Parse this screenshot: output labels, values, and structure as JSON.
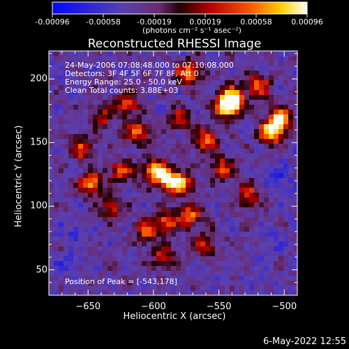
{
  "colorbar": {
    "ticks": [
      "-0.00096",
      "-0.00058",
      "-0.00019",
      "0.00019",
      "0.00058",
      "0.00096"
    ],
    "units_label": "(photons cm⁻² s⁻¹ asec⁻²)"
  },
  "chart_data": {
    "type": "heatmap",
    "title": "Reconstructed RHESSI Image",
    "xlabel": "Heliocentric X (arcsec)",
    "ylabel": "Heliocentric Y (arcsec)",
    "xlim": [
      -680,
      -490
    ],
    "ylim": [
      30,
      222
    ],
    "xticks": [
      -650,
      -600,
      -550,
      -500
    ],
    "yticks": [
      50,
      100,
      150,
      200
    ],
    "xtick_labels": [
      "-650",
      "-600",
      "-550",
      "-500"
    ],
    "ytick_labels": [
      "50",
      "100",
      "150",
      "200"
    ],
    "value_range": [
      -0.00096,
      0.00096
    ],
    "colormap": "blue-purple-red-yellow-white",
    "hotspots": [
      {
        "x": -599,
        "y": 128,
        "value": 0.00085
      },
      {
        "x": -543,
        "y": 178,
        "value": 0.00096
      },
      {
        "x": -588,
        "y": 120,
        "value": 0.0007
      },
      {
        "x": -648,
        "y": 118,
        "value": 0.0007
      },
      {
        "x": -510,
        "y": 158,
        "value": 0.00085
      },
      {
        "x": -503,
        "y": 168,
        "value": 0.0008
      },
      {
        "x": -540,
        "y": 185,
        "value": 0.0008
      },
      {
        "x": -573,
        "y": 205,
        "value": 0.0006
      },
      {
        "x": -560,
        "y": 152,
        "value": 0.0005
      },
      {
        "x": -578,
        "y": 118,
        "value": 0.0005
      },
      {
        "x": -548,
        "y": 130,
        "value": 0.0004
      },
      {
        "x": -528,
        "y": 108,
        "value": 0.0004
      },
      {
        "x": -620,
        "y": 180,
        "value": 0.0004
      },
      {
        "x": -612,
        "y": 158,
        "value": 0.0005
      },
      {
        "x": -655,
        "y": 145,
        "value": 0.0004
      },
      {
        "x": -625,
        "y": 128,
        "value": 0.0004
      },
      {
        "x": -572,
        "y": 92,
        "value": 0.0005
      },
      {
        "x": -590,
        "y": 88,
        "value": 0.0004
      },
      {
        "x": -632,
        "y": 98,
        "value": 0.0003
      },
      {
        "x": -605,
        "y": 80,
        "value": 0.0004
      },
      {
        "x": -592,
        "y": 60,
        "value": 0.0003
      },
      {
        "x": -560,
        "y": 70,
        "value": 0.0003
      },
      {
        "x": -640,
        "y": 170,
        "value": 0.0003
      },
      {
        "x": -520,
        "y": 195,
        "value": 0.0005
      },
      {
        "x": -580,
        "y": 168,
        "value": 0.0003
      },
      {
        "x": -660,
        "y": 80,
        "value": -0.0006
      },
      {
        "x": -505,
        "y": 75,
        "value": -0.0005
      },
      {
        "x": -505,
        "y": 122,
        "value": -0.0007
      },
      {
        "x": -665,
        "y": 55,
        "value": -0.0006
      },
      {
        "x": -520,
        "y": 45,
        "value": -0.0005
      },
      {
        "x": -655,
        "y": 210,
        "value": -0.0004
      },
      {
        "x": -610,
        "y": 40,
        "value": -0.0004
      },
      {
        "x": -640,
        "y": 195,
        "value": -0.0003
      }
    ],
    "annotations": [
      "24-May-2006 07:08:48.000 to 07:10:08.000",
      "Detectors: 3F 4F 5F 6F 7F 8F, Att 0",
      "Energy Range: 25.0 - 50.0 keV",
      "Clean     Total counts: 3.88E+03"
    ],
    "peak_label": "Position of Peak = [-543,178]"
  },
  "footer": "6-May-2022 12:55"
}
